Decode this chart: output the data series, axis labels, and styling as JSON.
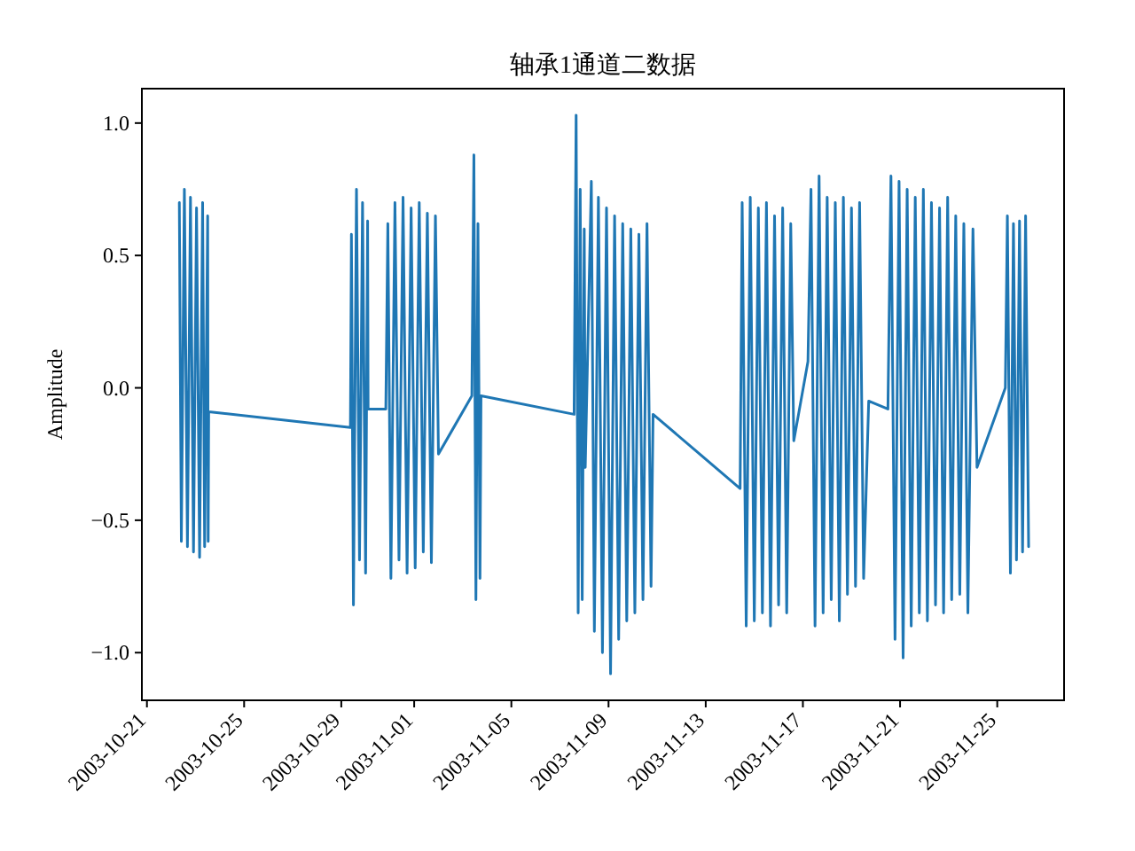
{
  "chart_data": {
    "type": "line",
    "title": "轴承1通道二数据",
    "ylabel": "Amplitude",
    "x": [
      "2003-10-22T08:00",
      "2003-10-22T10:00",
      "2003-10-22T13:00",
      "2003-10-22T16:00",
      "2003-10-22T19:00",
      "2003-10-22T22:00",
      "2003-10-23T01:00",
      "2003-10-23T04:00",
      "2003-10-23T07:00",
      "2003-10-23T09:00",
      "2003-10-23T12:00",
      "2003-10-23T12:30",
      "2003-10-23T13:00",
      "2003-10-29T09:00",
      "2003-10-29T10:00",
      "2003-10-29T12:00",
      "2003-10-29T15:00",
      "2003-10-29T18:00",
      "2003-10-29T21:00",
      "2003-10-30T00:00",
      "2003-10-30T02:00",
      "2003-10-30T02:30",
      "2003-10-30T20:00",
      "2003-10-30T22:00",
      "2003-10-31T01:00",
      "2003-10-31T05:00",
      "2003-10-31T09:00",
      "2003-10-31T13:00",
      "2003-10-31T17:00",
      "2003-10-31T21:00",
      "2003-11-01T01:00",
      "2003-11-01T05:00",
      "2003-11-01T09:00",
      "2003-11-01T13:00",
      "2003-11-01T17:00",
      "2003-11-01T21:00",
      "2003-11-02T00:00",
      "2003-11-03T09:00",
      "2003-11-03T11:00",
      "2003-11-03T13:00",
      "2003-11-03T15:00",
      "2003-11-03T17:00",
      "2003-11-03T18:00",
      "2003-11-07T14:00",
      "2003-11-07T16:00",
      "2003-11-07T18:00",
      "2003-11-07T20:00",
      "2003-11-07T22:00",
      "2003-11-08T00:00",
      "2003-11-08T01:00",
      "2003-11-08T07:00",
      "2003-11-08T10:00",
      "2003-11-08T14:00",
      "2003-11-08T18:00",
      "2003-11-08T22:00",
      "2003-11-09T02:00",
      "2003-11-09T06:00",
      "2003-11-09T10:00",
      "2003-11-09T14:00",
      "2003-11-09T18:00",
      "2003-11-09T22:00",
      "2003-11-10T02:00",
      "2003-11-10T06:00",
      "2003-11-10T10:00",
      "2003-11-10T14:00",
      "2003-11-10T18:00",
      "2003-11-10T20:00",
      "2003-11-14T10:00",
      "2003-11-14T12:00",
      "2003-11-14T16:00",
      "2003-11-14T20:00",
      "2003-11-15T00:00",
      "2003-11-15T04:00",
      "2003-11-15T08:00",
      "2003-11-15T12:00",
      "2003-11-15T16:00",
      "2003-11-15T20:00",
      "2003-11-16T00:00",
      "2003-11-16T04:00",
      "2003-11-16T08:00",
      "2003-11-16T12:00",
      "2003-11-16T15:00",
      "2003-11-17T05:00",
      "2003-11-17T08:00",
      "2003-11-17T12:00",
      "2003-11-17T16:00",
      "2003-11-17T20:00",
      "2003-11-18T00:00",
      "2003-11-18T04:00",
      "2003-11-18T08:00",
      "2003-11-18T12:00",
      "2003-11-18T16:00",
      "2003-11-18T20:00",
      "2003-11-19T00:00",
      "2003-11-19T04:00",
      "2003-11-19T08:00",
      "2003-11-19T12:00",
      "2003-11-19T17:00",
      "2003-11-20T12:00",
      "2003-11-20T15:00",
      "2003-11-20T19:00",
      "2003-11-20T23:00",
      "2003-11-21T03:00",
      "2003-11-21T07:00",
      "2003-11-21T11:00",
      "2003-11-21T15:00",
      "2003-11-21T19:00",
      "2003-11-21T23:00",
      "2003-11-22T03:00",
      "2003-11-22T07:00",
      "2003-11-22T11:00",
      "2003-11-22T15:00",
      "2003-11-22T19:00",
      "2003-11-22T23:00",
      "2003-11-23T03:00",
      "2003-11-23T07:00",
      "2003-11-23T11:00",
      "2003-11-23T15:00",
      "2003-11-23T19:00",
      "2003-11-24T00:00",
      "2003-11-24T04:00",
      "2003-11-25T08:00",
      "2003-11-25T10:00",
      "2003-11-25T13:00",
      "2003-11-25T16:00",
      "2003-11-25T19:00",
      "2003-11-25T22:00",
      "2003-11-26T01:00",
      "2003-11-26T04:00",
      "2003-11-26T07:00"
    ],
    "series": [
      {
        "color": "#1f77b4",
        "values": [
          0.7,
          -0.58,
          0.75,
          -0.6,
          0.72,
          -0.62,
          0.68,
          -0.64,
          0.7,
          -0.6,
          0.65,
          -0.58,
          -0.09,
          -0.15,
          0.58,
          -0.82,
          0.75,
          -0.65,
          0.7,
          -0.7,
          0.63,
          -0.08,
          -0.08,
          0.62,
          -0.72,
          0.7,
          -0.65,
          0.72,
          -0.7,
          0.68,
          -0.68,
          0.7,
          -0.62,
          0.66,
          -0.66,
          0.65,
          -0.25,
          -0.03,
          0.88,
          -0.8,
          0.62,
          -0.72,
          -0.03,
          -0.1,
          1.03,
          -0.85,
          0.75,
          -0.8,
          0.6,
          -0.3,
          0.78,
          -0.92,
          0.72,
          -1.0,
          0.68,
          -1.08,
          0.65,
          -0.95,
          0.62,
          -0.88,
          0.6,
          -0.85,
          0.58,
          -0.8,
          0.62,
          -0.75,
          -0.1,
          -0.38,
          0.7,
          -0.9,
          0.72,
          -0.88,
          0.68,
          -0.85,
          0.7,
          -0.9,
          0.65,
          -0.82,
          0.68,
          -0.85,
          0.62,
          -0.2,
          0.1,
          0.75,
          -0.9,
          0.8,
          -0.85,
          0.72,
          -0.8,
          0.7,
          -0.88,
          0.72,
          -0.78,
          0.68,
          -0.75,
          0.7,
          -0.72,
          -0.05,
          -0.08,
          0.8,
          -0.95,
          0.78,
          -1.02,
          0.75,
          -0.9,
          0.72,
          -0.85,
          0.75,
          -0.88,
          0.7,
          -0.82,
          0.68,
          -0.85,
          0.72,
          -0.8,
          0.65,
          -0.78,
          0.62,
          -0.85,
          0.6,
          -0.3,
          0.0,
          0.65,
          -0.7,
          0.62,
          -0.65,
          0.63,
          -0.62,
          0.65,
          -0.6
        ]
      }
    ],
    "xlim": [
      "2003-10-20T19:00",
      "2003-11-27T18:00"
    ],
    "xticks": [
      "2003-10-21",
      "2003-10-25",
      "2003-10-29",
      "2003-11-01",
      "2003-11-05",
      "2003-11-09",
      "2003-11-13",
      "2003-11-17",
      "2003-11-21",
      "2003-11-25"
    ],
    "ylim": [
      -1.18,
      1.13
    ],
    "yticks": [
      {
        "value": -1.0,
        "label": "−1.0"
      },
      {
        "value": -0.5,
        "label": "−0.5"
      },
      {
        "value": 0.0,
        "label": "0.0"
      },
      {
        "value": 0.5,
        "label": "0.5"
      },
      {
        "value": 1.0,
        "label": "1.0"
      }
    ]
  }
}
